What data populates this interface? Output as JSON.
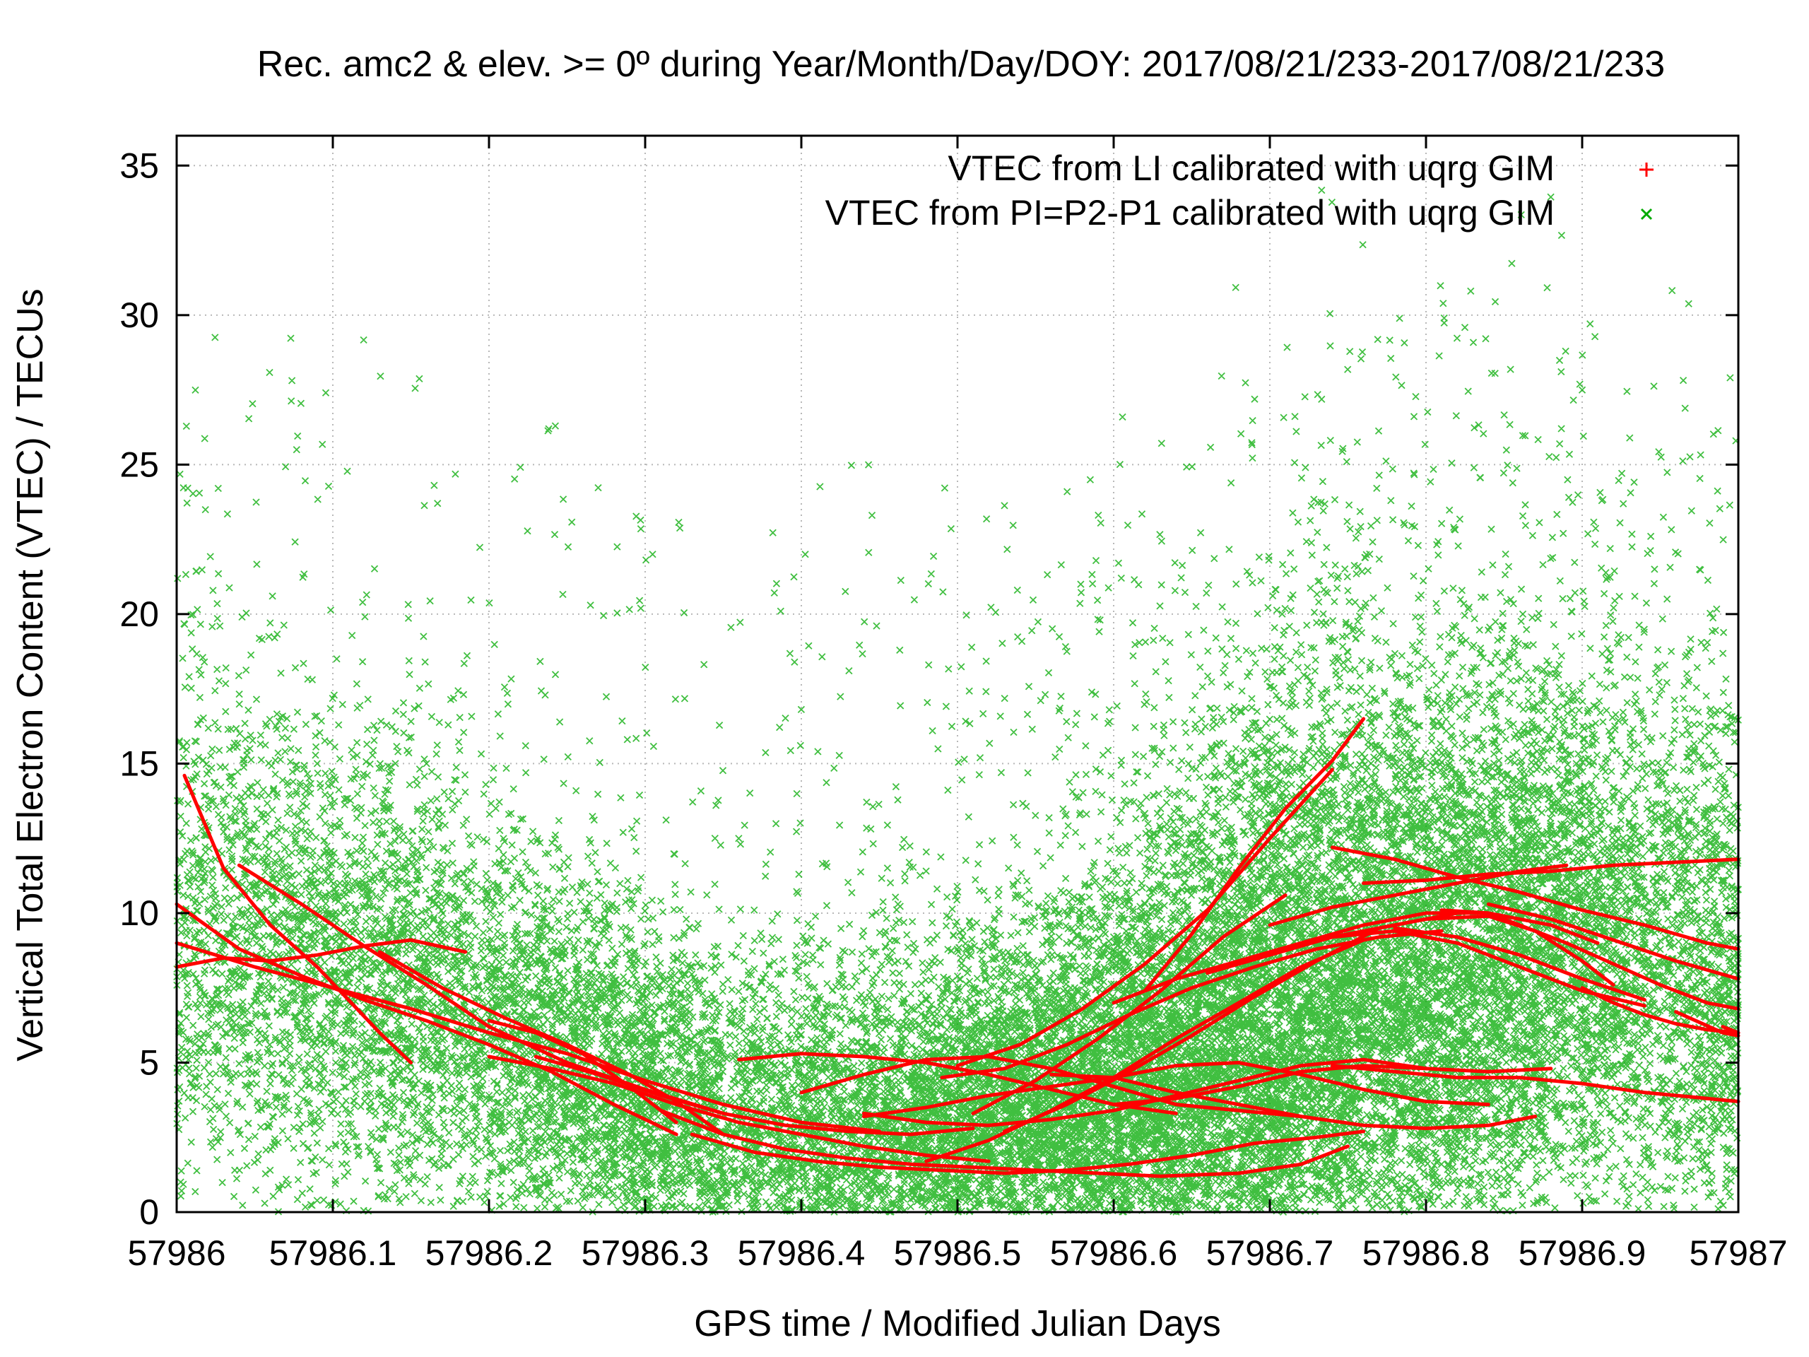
{
  "chart_data": {
    "type": "scatter",
    "title": "Rec. amc2 & elev. >= 0º during Year/Month/Day/DOY: 2017/08/21/233-2017/08/21/233",
    "xlabel": "GPS time / Modified Julian Days",
    "ylabel": "Vertical Total Electron Content (VTEC) / TECUs",
    "xlim": [
      57986,
      57987
    ],
    "ylim": [
      0,
      36
    ],
    "x_ticks": [
      "57986",
      "57986.1",
      "57986.2",
      "57986.3",
      "57986.4",
      "57986.5",
      "57986.6",
      "57986.7",
      "57986.8",
      "57986.9",
      "57987"
    ],
    "y_ticks": [
      "0",
      "5",
      "10",
      "15",
      "20",
      "25",
      "30",
      "35"
    ],
    "grid": true,
    "legend_position": "top-right",
    "series": [
      {
        "name": "VTEC from LI calibrated with uqrg GIM",
        "color": "#ff0000",
        "marker": "plus",
        "tracks": [
          {
            "x": [
              57986.0,
              57986.03,
              57986.06,
              57986.09,
              57986.12,
              57986.15,
              57986.185
            ],
            "y": [
              8.2,
              8.5,
              8.4,
              8.6,
              8.9,
              9.1,
              8.7
            ]
          },
          {
            "x": [
              57986.0,
              57986.04,
              57986.08,
              57986.12,
              57986.16,
              57986.2,
              57986.24,
              57986.28,
              57986.32
            ],
            "y": [
              10.3,
              8.8,
              7.9,
              7.1,
              6.4,
              5.6,
              4.7,
              3.6,
              2.6
            ]
          },
          {
            "x": [
              57986.005,
              57986.03,
              57986.06,
              57986.09,
              57986.11,
              57986.13,
              57986.15
            ],
            "y": [
              14.6,
              11.5,
              9.6,
              8.2,
              7.1,
              6.0,
              5.0
            ]
          },
          {
            "x": [
              57986.04,
              57986.08,
              57986.12,
              57986.16,
              57986.2,
              57986.25,
              57986.3,
              57986.35
            ],
            "y": [
              11.6,
              10.3,
              8.9,
              7.6,
              6.2,
              5.0,
              4.1,
              3.3
            ]
          },
          {
            "x": [
              57986.13,
              57986.17,
              57986.21,
              57986.25,
              57986.29,
              57986.32,
              57986.35
            ],
            "y": [
              8.7,
              7.5,
              6.5,
              5.6,
              4.6,
              3.7,
              2.6
            ]
          },
          {
            "x": [
              57986.0,
              57986.05,
              57986.1,
              57986.15,
              57986.2,
              57986.25,
              57986.3,
              57986.35,
              57986.4,
              57986.45
            ],
            "y": [
              9.0,
              8.2,
              7.5,
              6.8,
              6.0,
              5.3,
              4.4,
              3.6,
              3.0,
              2.7
            ]
          },
          {
            "x": [
              57986.2,
              57986.23,
              57986.26,
              57986.29,
              57986.32
            ],
            "y": [
              6.4,
              6.0,
              5.3,
              4.2,
              3.0
            ]
          },
          {
            "x": [
              57986.2,
              57986.24,
              57986.28,
              57986.32,
              57986.36,
              57986.4,
              57986.44,
              57986.48,
              57986.52
            ],
            "y": [
              5.2,
              4.8,
              4.3,
              3.6,
              3.0,
              2.6,
              2.2,
              1.9,
              1.7
            ]
          },
          {
            "x": [
              57986.23,
              57986.27,
              57986.31,
              57986.35,
              57986.39,
              57986.43,
              57986.47,
              57986.51
            ],
            "y": [
              5.2,
              4.6,
              3.9,
              3.3,
              2.9,
              2.7,
              2.6,
              2.8
            ]
          },
          {
            "x": [
              57986.31,
              57986.35,
              57986.39,
              57986.43,
              57986.47,
              57986.51,
              57986.55,
              57986.59,
              57986.63,
              57986.68,
              57986.72,
              57986.75
            ],
            "y": [
              3.4,
              2.6,
              2.1,
              1.8,
              1.6,
              1.5,
              1.4,
              1.3,
              1.2,
              1.3,
              1.6,
              2.2
            ]
          },
          {
            "x": [
              57986.33,
              57986.37,
              57986.41,
              57986.45,
              57986.49,
              57986.53,
              57986.57,
              57986.61,
              57986.65,
              57986.69,
              57986.73,
              57986.76
            ],
            "y": [
              2.6,
              2.0,
              1.7,
              1.5,
              1.4,
              1.3,
              1.4,
              1.6,
              1.9,
              2.3,
              2.5,
              2.7
            ]
          },
          {
            "x": [
              57986.36,
              57986.4,
              57986.44,
              57986.48,
              57986.52,
              57986.56,
              57986.6,
              57986.64
            ],
            "y": [
              5.1,
              5.3,
              5.2,
              5.0,
              4.6,
              4.1,
              3.6,
              3.3
            ]
          },
          {
            "x": [
              57986.4,
              57986.44,
              57986.48,
              57986.52,
              57986.56,
              57986.6,
              57986.64,
              57986.68,
              57986.72
            ],
            "y": [
              4.0,
              4.6,
              5.1,
              5.2,
              4.8,
              4.2,
              3.6,
              3.4,
              3.2
            ]
          },
          {
            "x": [
              57986.44,
              57986.48,
              57986.52,
              57986.56,
              57986.6,
              57986.64,
              57986.68,
              57986.72,
              57986.76,
              57986.8,
              57986.84
            ],
            "y": [
              3.2,
              3.5,
              3.9,
              4.2,
              4.5,
              4.9,
              5.0,
              4.6,
              4.1,
              3.7,
              3.6
            ]
          },
          {
            "x": [
              57986.56,
              57986.6,
              57986.64,
              57986.68,
              57986.72,
              57986.76,
              57986.8,
              57986.84,
              57986.87
            ],
            "y": [
              4.6,
              4.5,
              4.0,
              3.6,
              3.2,
              2.9,
              2.8,
              2.9,
              3.2
            ]
          },
          {
            "x": [
              57986.44,
              57986.48,
              57986.52,
              57986.56,
              57986.6,
              57986.64,
              57986.68,
              57986.72,
              57986.76,
              57986.8
            ],
            "y": [
              3.3,
              3.0,
              2.9,
              3.1,
              3.4,
              3.9,
              4.4,
              4.9,
              5.1,
              4.8
            ]
          },
          {
            "x": [
              57986.6,
              57986.64,
              57986.68,
              57986.72,
              57986.76,
              57986.8,
              57986.84,
              57986.88
            ],
            "y": [
              3.6,
              3.8,
              4.2,
              4.7,
              4.9,
              4.8,
              4.7,
              4.8
            ]
          },
          {
            "x": [
              57986.74,
              57986.78,
              57986.82,
              57986.86,
              57986.9,
              57986.94,
              57986.98,
              57987.0
            ],
            "y": [
              4.9,
              4.7,
              4.5,
              4.5,
              4.3,
              4.0,
              3.8,
              3.7
            ]
          },
          {
            "x": [
              57986.49,
              57986.53,
              57986.57,
              57986.61,
              57986.65,
              57986.69,
              57986.73,
              57986.77,
              57986.81
            ],
            "y": [
              4.5,
              4.8,
              5.6,
              6.6,
              7.5,
              8.2,
              8.8,
              9.2,
              9.4
            ]
          },
          {
            "x": [
              57986.5,
              57986.54,
              57986.58,
              57986.62,
              57986.66,
              57986.7,
              57986.74
            ],
            "y": [
              4.9,
              5.6,
              6.8,
              8.3,
              10.1,
              12.5,
              14.8
            ]
          },
          {
            "x": [
              57986.51,
              57986.55,
              57986.59,
              57986.63,
              57986.67,
              57986.71
            ],
            "y": [
              3.3,
              4.4,
              5.8,
              7.4,
              9.2,
              10.6
            ]
          },
          {
            "x": [
              57986.53,
              57986.57,
              57986.61,
              57986.65,
              57986.69,
              57986.73,
              57986.77,
              57986.82
            ],
            "y": [
              2.7,
              3.6,
              4.7,
              5.9,
              7.2,
              8.4,
              9.5,
              10.0
            ]
          },
          {
            "x": [
              57986.48,
              57986.52,
              57986.56,
              57986.6,
              57986.64,
              57986.68,
              57986.72,
              57986.76
            ],
            "y": [
              1.7,
              2.4,
              3.4,
              4.5,
              5.8,
              7.0,
              8.2,
              9.1
            ]
          },
          {
            "x": [
              57986.6,
              57986.64,
              57986.68,
              57986.72,
              57986.76,
              57986.8,
              57986.84,
              57986.88,
              57986.91
            ],
            "y": [
              7.0,
              7.8,
              8.4,
              9.0,
              9.6,
              10.0,
              10.0,
              9.6,
              9.0
            ]
          },
          {
            "x": [
              57986.62,
              57986.65,
              57986.68,
              57986.71,
              57986.74,
              57986.76
            ],
            "y": [
              7.4,
              9.3,
              11.5,
              13.5,
              15.1,
              16.5
            ]
          },
          {
            "x": [
              57986.66,
              57986.7,
              57986.74,
              57986.78,
              57986.82,
              57986.86,
              57986.9,
              57986.94
            ],
            "y": [
              8.0,
              8.6,
              9.2,
              9.4,
              9.0,
              8.2,
              7.4,
              6.9
            ]
          },
          {
            "x": [
              57986.74,
              57986.78,
              57986.82,
              57986.86,
              57986.9,
              57986.94,
              57986.98,
              57987.0
            ],
            "y": [
              12.2,
              11.8,
              11.2,
              10.7,
              10.1,
              9.6,
              9.0,
              8.8
            ]
          },
          {
            "x": [
              57986.81,
              57986.84,
              57986.86,
              57986.89,
              57986.92,
              57986.95,
              57986.98,
              57987.0
            ],
            "y": [
              10.1,
              10.0,
              9.6,
              9.0,
              8.3,
              7.6,
              7.0,
              6.8
            ]
          },
          {
            "x": [
              57986.78,
              57986.82,
              57986.86,
              57986.9,
              57986.94
            ],
            "y": [
              9.5,
              9.2,
              8.6,
              7.8,
              7.1
            ]
          },
          {
            "x": [
              57986.84,
              57986.88,
              57986.92,
              57986.96,
              57987.0
            ],
            "y": [
              10.3,
              9.8,
              9.1,
              8.4,
              7.8
            ]
          },
          {
            "x": [
              57986.72,
              57986.76,
              57986.8,
              57986.84,
              57986.87,
              57986.9,
              57986.92
            ],
            "y": [
              9.0,
              9.4,
              9.8,
              9.9,
              9.4,
              8.4,
              7.6
            ]
          },
          {
            "x": [
              57986.7,
              57986.74,
              57986.78,
              57986.82,
              57986.86,
              57986.89
            ],
            "y": [
              9.6,
              10.2,
              10.6,
              11.0,
              11.4,
              11.6
            ]
          },
          {
            "x": [
              57986.76,
              57986.8,
              57986.84,
              57986.88,
              57986.92,
              57986.96,
              57987.0
            ],
            "y": [
              11.0,
              11.1,
              11.3,
              11.4,
              11.6,
              11.7,
              11.8
            ]
          },
          {
            "x": [
              57986.9,
              57986.92,
              57986.94,
              57986.96,
              57986.98,
              57987.0
            ],
            "y": [
              7.5,
              7.0,
              6.6,
              6.3,
              6.1,
              6.0
            ]
          },
          {
            "x": [
              57986.96,
              57986.99,
              57987.0
            ],
            "y": [
              6.7,
              6.0,
              5.9
            ]
          },
          {
            "x": [
              57986.99,
              57987.0
            ],
            "y": [
              6.2,
              6.0
            ]
          }
        ]
      },
      {
        "name": "VTEC from PI=P2-P1 calibrated with uqrg GIM",
        "color": "#00aa00",
        "marker": "cross"
      }
    ]
  }
}
